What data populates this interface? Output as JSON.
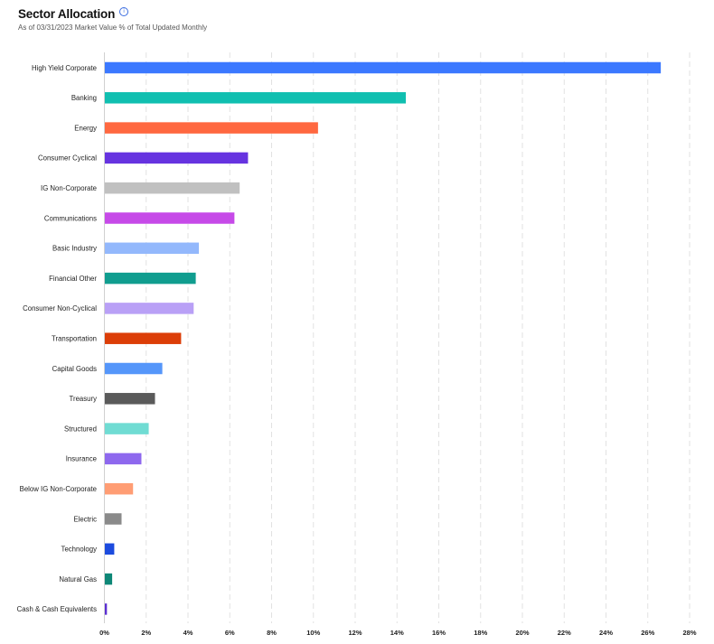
{
  "header": {
    "title": "Sector Allocation",
    "info_icon": "info-icon",
    "subtitle": "As of 03/31/2023 Market Value % of Total Updated Monthly"
  },
  "chart_data": {
    "type": "bar",
    "orientation": "horizontal",
    "title": "Sector Allocation",
    "xlabel": "",
    "ylabel": "",
    "xlim": [
      0,
      28
    ],
    "x_ticks": [
      "0%",
      "2%",
      "4%",
      "6%",
      "8%",
      "10%",
      "12%",
      "14%",
      "16%",
      "18%",
      "20%",
      "22%",
      "24%",
      "26%",
      "28%"
    ],
    "grid": "vertical dashed",
    "categories": [
      "High Yield Corporate",
      "Banking",
      "Energy",
      "Consumer Cyclical",
      "IG Non-Corporate",
      "Communications",
      "Basic Industry",
      "Financial Other",
      "Consumer Non-Cyclical",
      "Transportation",
      "Capital Goods",
      "Treasury",
      "Structured",
      "Insurance",
      "Below IG Non-Corporate",
      "Electric",
      "Technology",
      "Natural Gas",
      "Cash & Cash Equivalents"
    ],
    "values": [
      26.6,
      14.4,
      10.2,
      6.85,
      6.45,
      6.2,
      4.5,
      4.35,
      4.25,
      3.65,
      2.75,
      2.4,
      2.1,
      1.75,
      1.35,
      0.8,
      0.45,
      0.35,
      0.1
    ],
    "colors": [
      "#3b78ff",
      "#10bfb0",
      "#ff6840",
      "#6633e0",
      "#c0c0c0",
      "#c64ae8",
      "#93b8fc",
      "#109d8f",
      "#b9a0f6",
      "#dc3e08",
      "#5596fa",
      "#5a5a5a",
      "#70dcd3",
      "#8e68ee",
      "#ff9d74",
      "#8a8a8a",
      "#1c4bde",
      "#0e8777",
      "#5b2fd2"
    ]
  }
}
